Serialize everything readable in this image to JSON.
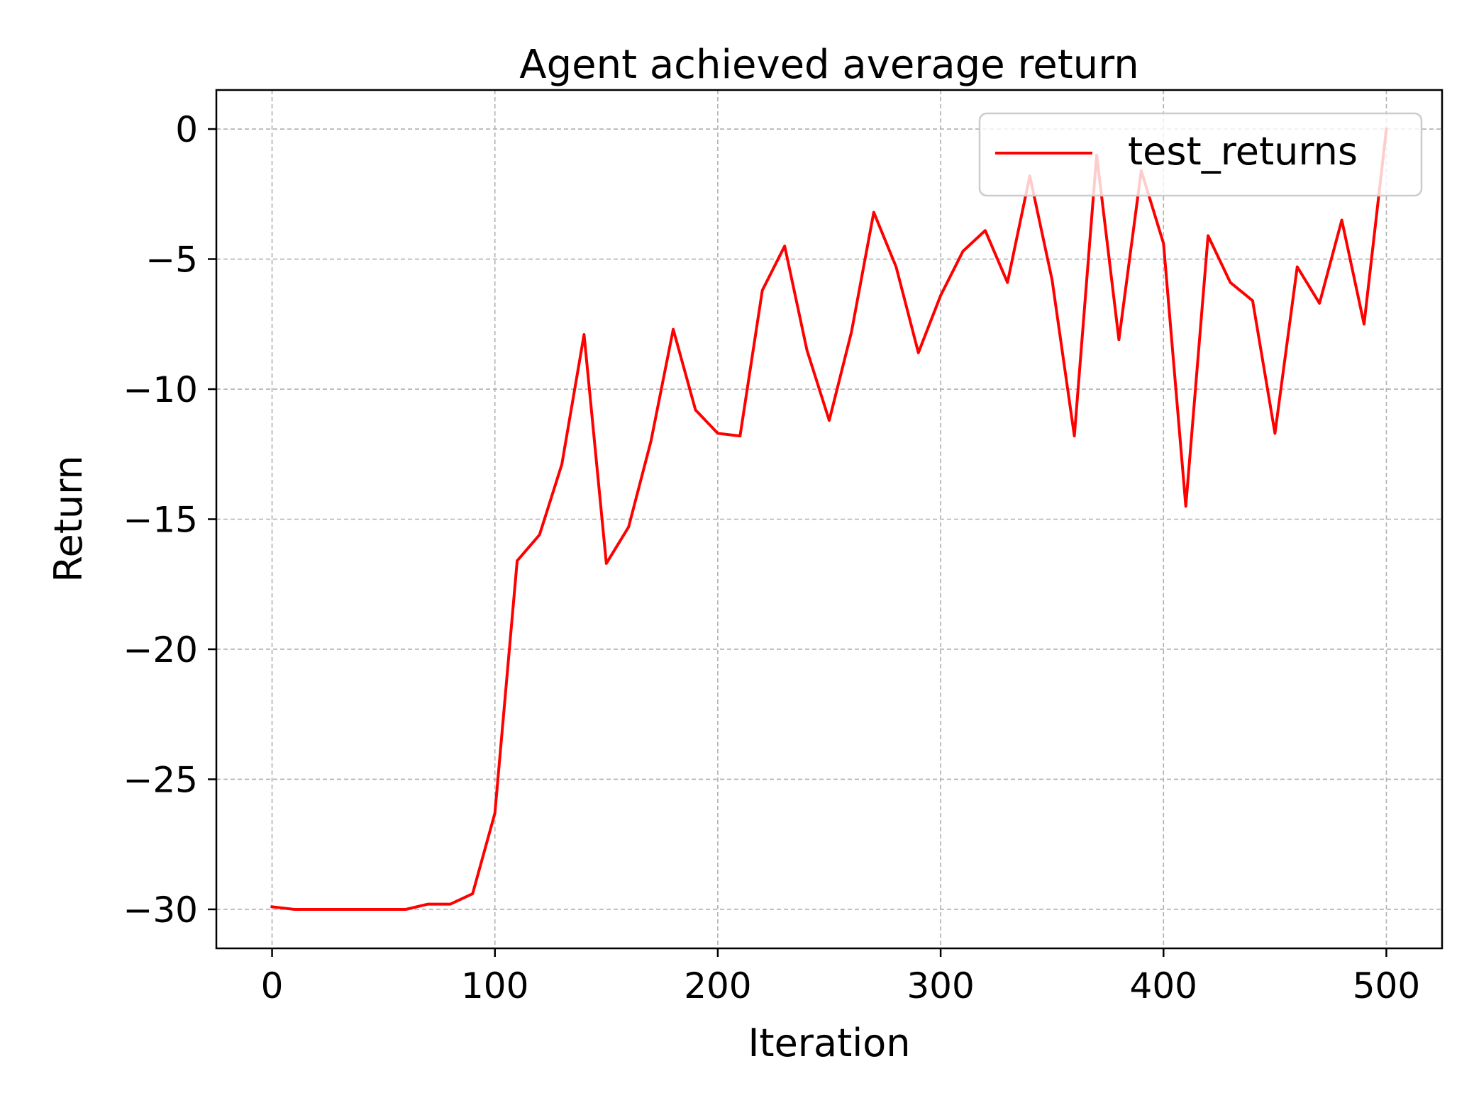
{
  "chart_data": {
    "type": "line",
    "title": "Agent achieved average return",
    "xlabel": "Iteration",
    "ylabel": "Return",
    "xlim": [
      -25,
      525
    ],
    "ylim": [
      -31.5,
      1.5
    ],
    "xticks": [
      0,
      100,
      200,
      300,
      400,
      500
    ],
    "xtick_labels": [
      "0",
      "100",
      "200",
      "300",
      "400",
      "500"
    ],
    "yticks": [
      0,
      -5,
      -10,
      -15,
      -20,
      -25,
      -30
    ],
    "ytick_labels": [
      "0",
      "−5",
      "−10",
      "−15",
      "−20",
      "−25",
      "−30"
    ],
    "grid": true,
    "legend_position": "top-right",
    "series": [
      {
        "name": "test_returns",
        "color": "#ff0000",
        "x": [
          0,
          10,
          20,
          30,
          40,
          50,
          60,
          70,
          80,
          90,
          100,
          110,
          120,
          130,
          140,
          150,
          160,
          170,
          180,
          190,
          200,
          210,
          220,
          230,
          240,
          250,
          260,
          270,
          280,
          290,
          300,
          310,
          320,
          330,
          340,
          350,
          360,
          370,
          380,
          390,
          400,
          410,
          420,
          430,
          440,
          450,
          460,
          470,
          480,
          490,
          500
        ],
        "y": [
          -29.9,
          -30.0,
          -30.0,
          -30.0,
          -30.0,
          -30.0,
          -30.0,
          -29.8,
          -29.8,
          -29.4,
          -26.3,
          -16.6,
          -15.6,
          -12.9,
          -7.9,
          -16.7,
          -15.3,
          -12.0,
          -7.7,
          -10.8,
          -11.7,
          -11.8,
          -6.2,
          -4.5,
          -8.5,
          -11.2,
          -7.8,
          -3.2,
          -5.3,
          -8.6,
          -6.4,
          -4.7,
          -3.9,
          -5.9,
          -1.8,
          -5.8,
          -11.8,
          -1.0,
          -8.1,
          -1.6,
          -4.4,
          -14.5,
          -4.1,
          -5.9,
          -6.6,
          -11.7,
          -5.3,
          -6.7,
          -3.5,
          -7.5,
          0.0
        ]
      }
    ]
  }
}
